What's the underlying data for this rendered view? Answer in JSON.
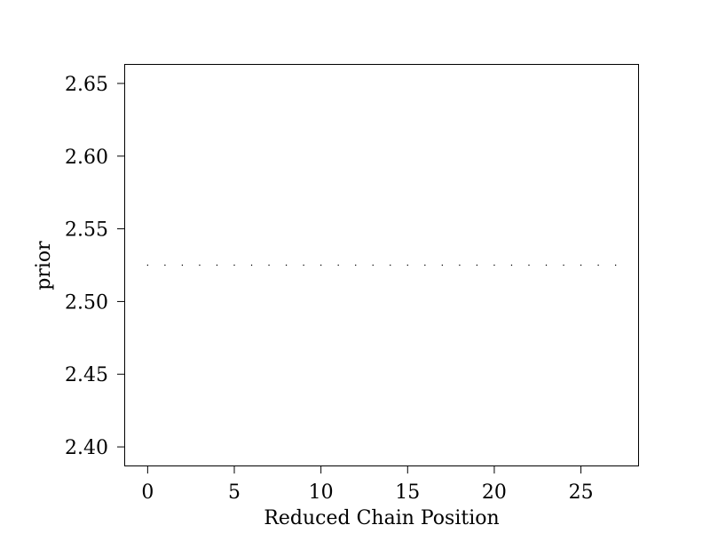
{
  "chart_data": {
    "type": "scatter",
    "title": "",
    "xlabel": "Reduced Chain Position",
    "ylabel": "prior",
    "xlim": [
      -1.35,
      28.35
    ],
    "ylim": [
      2.3866,
      2.6634
    ],
    "x_ticks": [
      0,
      5,
      10,
      15,
      20,
      25
    ],
    "x_tick_labels": [
      "0",
      "5",
      "10",
      "15",
      "20",
      "25"
    ],
    "y_ticks": [
      2.4,
      2.45,
      2.5,
      2.55,
      2.6,
      2.65
    ],
    "y_tick_labels": [
      "2.40",
      "2.45",
      "2.50",
      "2.55",
      "2.60",
      "2.65"
    ],
    "grid": false,
    "marker_color": "#000000",
    "series": [
      {
        "x": [
          0,
          1,
          2,
          3,
          4,
          5,
          6,
          7,
          8,
          9,
          10,
          11,
          12,
          13,
          14,
          15,
          16,
          17,
          18,
          19,
          20,
          21,
          22,
          23,
          24,
          25,
          26,
          27
        ],
        "y": [
          2.525,
          2.525,
          2.525,
          2.525,
          2.525,
          2.525,
          2.525,
          2.525,
          2.525,
          2.525,
          2.525,
          2.525,
          2.525,
          2.525,
          2.525,
          2.525,
          2.525,
          2.525,
          2.525,
          2.525,
          2.525,
          2.525,
          2.525,
          2.525,
          2.525,
          2.525,
          2.525,
          2.525
        ]
      }
    ]
  }
}
